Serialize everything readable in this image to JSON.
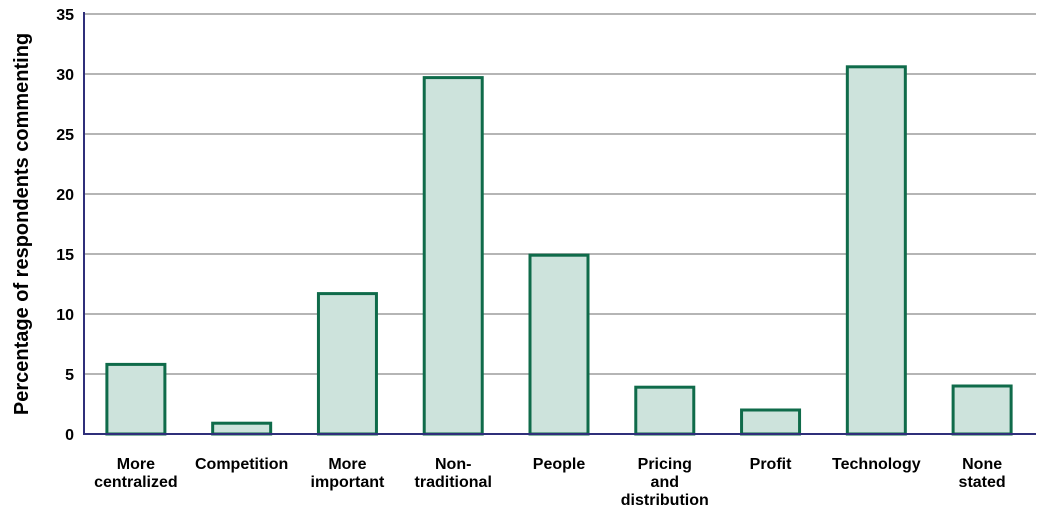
{
  "chart_data": {
    "type": "bar",
    "title": "",
    "xlabel": "",
    "ylabel": "Percentage of respondents commenting",
    "ylim": [
      0,
      35
    ],
    "yticks": [
      0,
      5,
      10,
      15,
      20,
      25,
      30,
      35
    ],
    "grid": true,
    "categories": [
      [
        "More",
        "centralized"
      ],
      [
        "Competition"
      ],
      [
        "More",
        "important"
      ],
      [
        "Non-",
        "traditional"
      ],
      [
        "People"
      ],
      [
        "Pricing",
        "and",
        "distribution"
      ],
      [
        "Profit"
      ],
      [
        "Technology"
      ],
      [
        "None",
        "stated"
      ]
    ],
    "values": [
      5.8,
      0.9,
      11.7,
      29.7,
      14.9,
      3.9,
      2.0,
      30.6,
      4.0
    ]
  },
  "colors": {
    "bar_fill": "#cde3dc",
    "bar_stroke": "#0f6b4a",
    "axis": "#2f2f7a",
    "grid": "#b5b5b5"
  }
}
